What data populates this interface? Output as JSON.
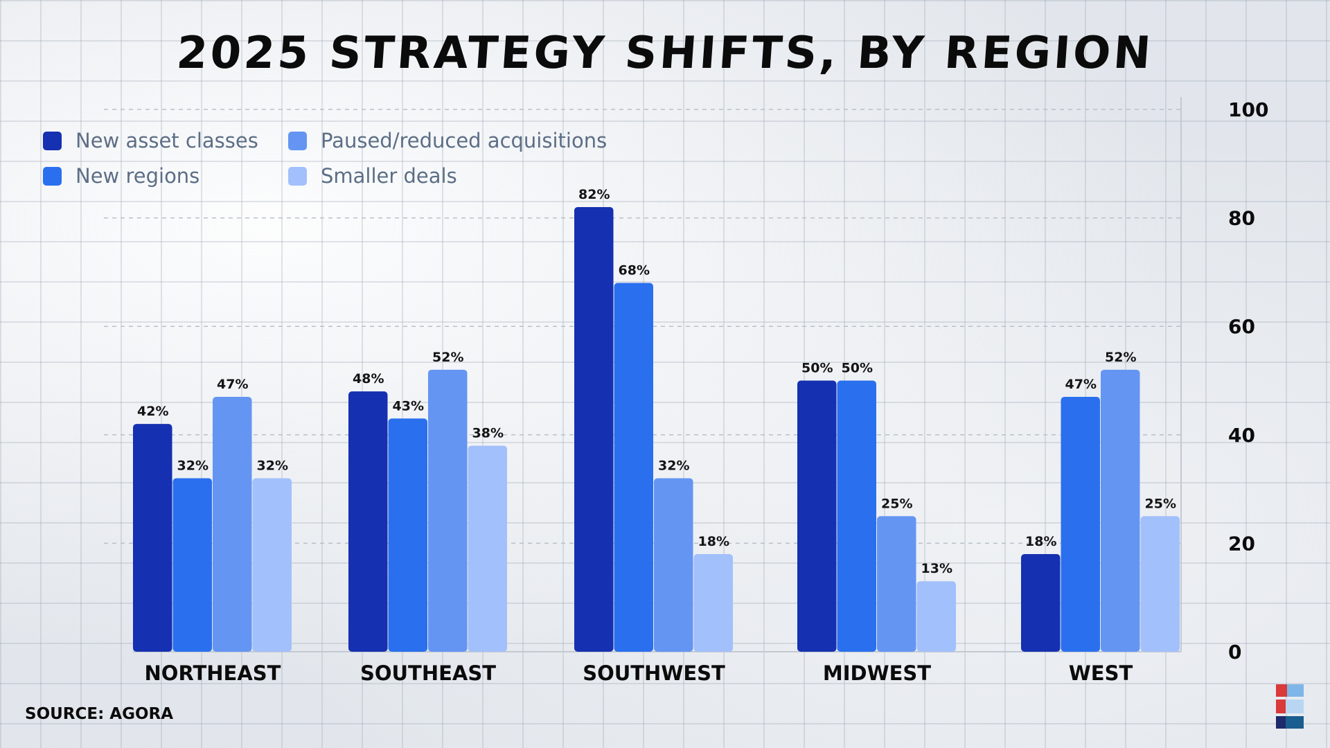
{
  "title": "2025 STRATEGY SHIFTS, BY REGION",
  "source": "SOURCE: AGORA",
  "legend": {
    "items": [
      {
        "label": "New asset classes",
        "color": "#1530b0"
      },
      {
        "label": "New regions",
        "color": "#2a70ee"
      },
      {
        "label": "Paused/reduced acquisitions",
        "color": "#6495f3"
      },
      {
        "label": "Smaller deals",
        "color": "#a2c0fb"
      }
    ]
  },
  "chart_data": {
    "type": "bar",
    "categories": [
      "NORTHEAST",
      "SOUTHEAST",
      "SOUTHWEST",
      "MIDWEST",
      "WEST"
    ],
    "series": [
      {
        "name": "New asset classes",
        "color": "#1530b0",
        "values": [
          42,
          48,
          82,
          50,
          18
        ],
        "labels": [
          "42%",
          "48%",
          "82%",
          "50%",
          "18%"
        ]
      },
      {
        "name": "New regions",
        "color": "#2a70ee",
        "values": [
          32,
          43,
          68,
          50,
          47
        ],
        "labels": [
          "32%",
          "43%",
          "68%",
          "50%",
          "47%"
        ]
      },
      {
        "name": "Paused/reduced acquisitions",
        "color": "#6495f3",
        "values": [
          47,
          52,
          32,
          25,
          52
        ],
        "labels": [
          "47%",
          "52%",
          "32%",
          "25%",
          "52%"
        ]
      },
      {
        "name": "Smaller deals",
        "color": "#a2c0fb",
        "values": [
          32,
          38,
          18,
          13,
          25
        ],
        "labels": [
          "32%",
          "38%",
          "18%",
          "13%",
          "25%"
        ]
      }
    ],
    "ylim": [
      0,
      100
    ],
    "yticks": [
      0,
      20,
      40,
      60,
      80,
      100
    ],
    "y_axis_side": "right",
    "grid": true,
    "legend_position": "top-left"
  }
}
